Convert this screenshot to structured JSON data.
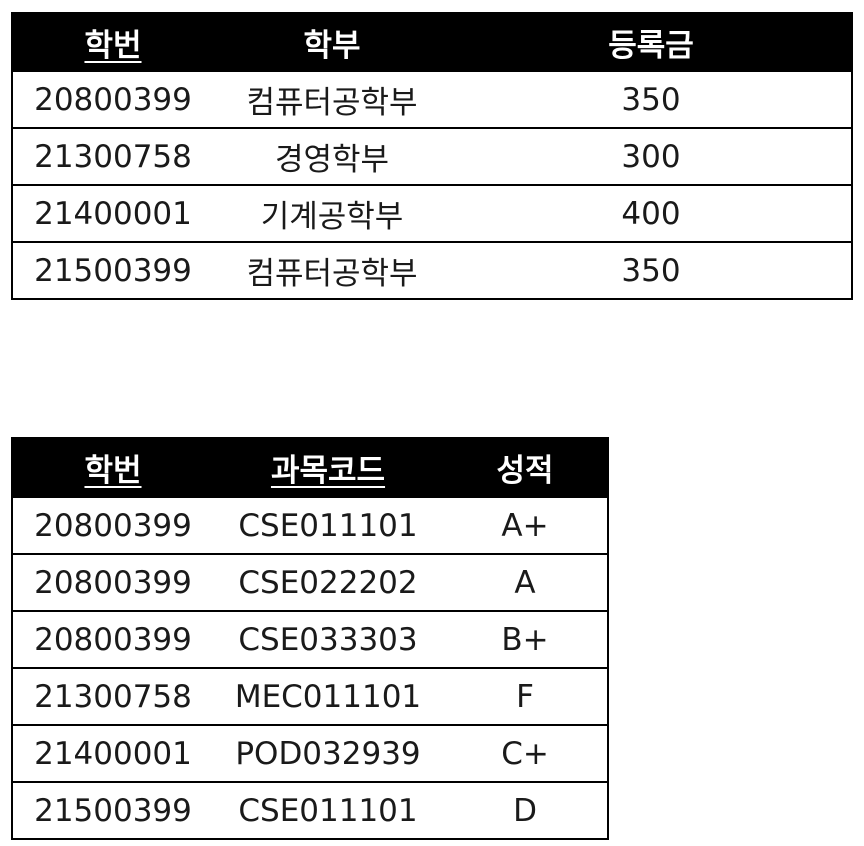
{
  "students_table": {
    "headers": {
      "student_id": "학번",
      "department": "학부",
      "tuition": "등록금"
    },
    "rows": [
      {
        "student_id": "20800399",
        "department": "컴퓨터공학부",
        "tuition": "350"
      },
      {
        "student_id": "21300758",
        "department": "경영학부",
        "tuition": "300"
      },
      {
        "student_id": "21400001",
        "department": "기계공학부",
        "tuition": "400"
      },
      {
        "student_id": "21500399",
        "department": "컴퓨터공학부",
        "tuition": "350"
      }
    ]
  },
  "grades_table": {
    "headers": {
      "student_id": "학번",
      "course_code": "과목코드",
      "grade": "성적"
    },
    "rows": [
      {
        "student_id": "20800399",
        "course_code": "CSE011101",
        "grade": "A+"
      },
      {
        "student_id": "20800399",
        "course_code": "CSE022202",
        "grade": "A"
      },
      {
        "student_id": "20800399",
        "course_code": "CSE033303",
        "grade": "B+"
      },
      {
        "student_id": "21300758",
        "course_code": "MEC011101",
        "grade": "F"
      },
      {
        "student_id": "21400001",
        "course_code": "POD032939",
        "grade": "C+"
      },
      {
        "student_id": "21500399",
        "course_code": "CSE011101",
        "grade": "D"
      }
    ]
  }
}
